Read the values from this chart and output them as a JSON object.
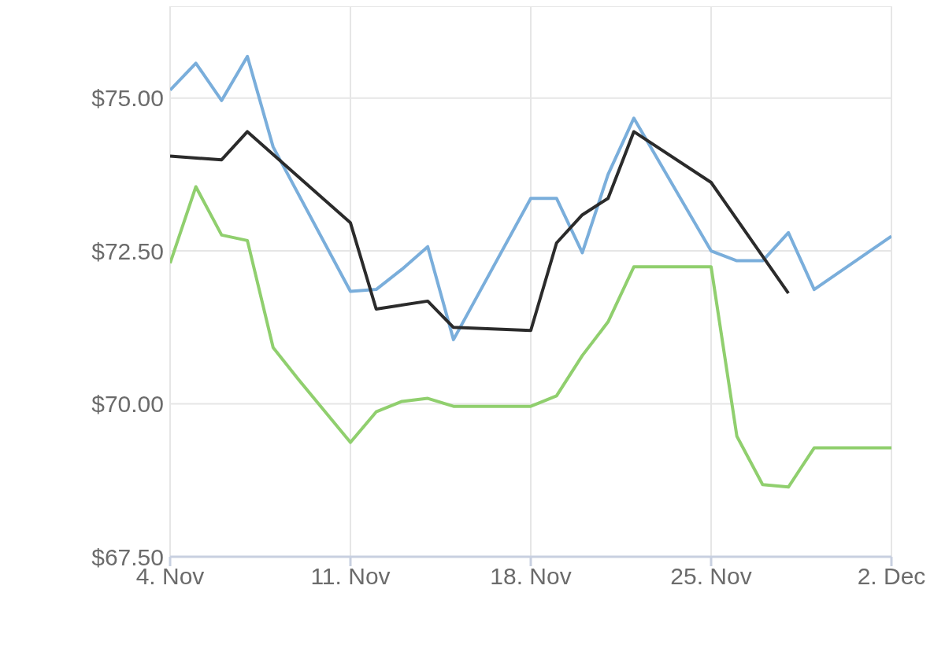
{
  "chart_data": {
    "type": "line",
    "xlim": [
      "--11-04",
      "--12-02"
    ],
    "xticks": [
      {
        "value": "--11-04",
        "label": "4. Nov"
      },
      {
        "value": "--11-11",
        "label": "11. Nov"
      },
      {
        "value": "--11-18",
        "label": "18. Nov"
      },
      {
        "value": "--11-25",
        "label": "25. Nov"
      },
      {
        "value": "--12-02",
        "label": "2. Dec"
      }
    ],
    "ylim": [
      67.5,
      76.5
    ],
    "yticks": [
      {
        "value": 67.5,
        "label": "$67.50"
      },
      {
        "value": 70,
        "label": "$70.00"
      },
      {
        "value": 72.5,
        "label": "$72.50"
      },
      {
        "value": 75,
        "label": "$75.00"
      }
    ],
    "grid": true,
    "legend": false,
    "marker": "none",
    "line_style": "solid",
    "series": [
      {
        "color": "#7aaedb",
        "x": [
          "--11-04",
          "--11-05",
          "--11-06",
          "--11-07",
          "--11-08",
          "--11-11",
          "--11-12",
          "--11-13",
          "--11-14",
          "--11-15",
          "--11-18",
          "--11-19",
          "--11-20",
          "--11-21",
          "--11-22",
          "--11-25",
          "--11-26",
          "--11-27",
          "--11-28",
          "--11-29",
          "--12-02"
        ],
        "values": [
          75.13,
          75.57,
          74.96,
          75.68,
          74.2,
          71.84,
          71.87,
          72.2,
          72.57,
          71.05,
          73.36,
          73.36,
          72.47,
          73.75,
          74.67,
          72.5,
          72.34,
          72.34,
          72.8,
          71.87,
          72.74
        ]
      },
      {
        "color": "#2b2b2b",
        "x": [
          "--11-04",
          "--11-06",
          "--11-07",
          "--11-11",
          "--11-12",
          "--11-14",
          "--11-15",
          "--11-18",
          "--11-19",
          "--11-20",
          "--11-21",
          "--11-22",
          "--11-25",
          "--11-28"
        ],
        "values": [
          74.05,
          73.99,
          74.45,
          72.96,
          71.55,
          71.68,
          71.25,
          71.2,
          72.63,
          73.09,
          73.36,
          74.45,
          73.62,
          71.81
        ]
      },
      {
        "color": "#90cf6e",
        "x": [
          "--11-04",
          "--11-05",
          "--11-06",
          "--11-07",
          "--11-08",
          "--11-09",
          "--11-11",
          "--11-12",
          "--11-13",
          "--11-14",
          "--11-15",
          "--11-18",
          "--11-19",
          "--11-20",
          "--11-21",
          "--11-22",
          "--11-25",
          "--11-26",
          "--11-27",
          "--11-28",
          "--11-29",
          "--12-02"
        ],
        "values": [
          72.3,
          73.55,
          72.76,
          72.67,
          70.92,
          70.39,
          69.37,
          69.87,
          70.04,
          70.09,
          69.96,
          69.96,
          70.13,
          70.79,
          71.34,
          72.24,
          72.24,
          69.47,
          68.68,
          68.64,
          69.28,
          69.28
        ]
      }
    ]
  }
}
